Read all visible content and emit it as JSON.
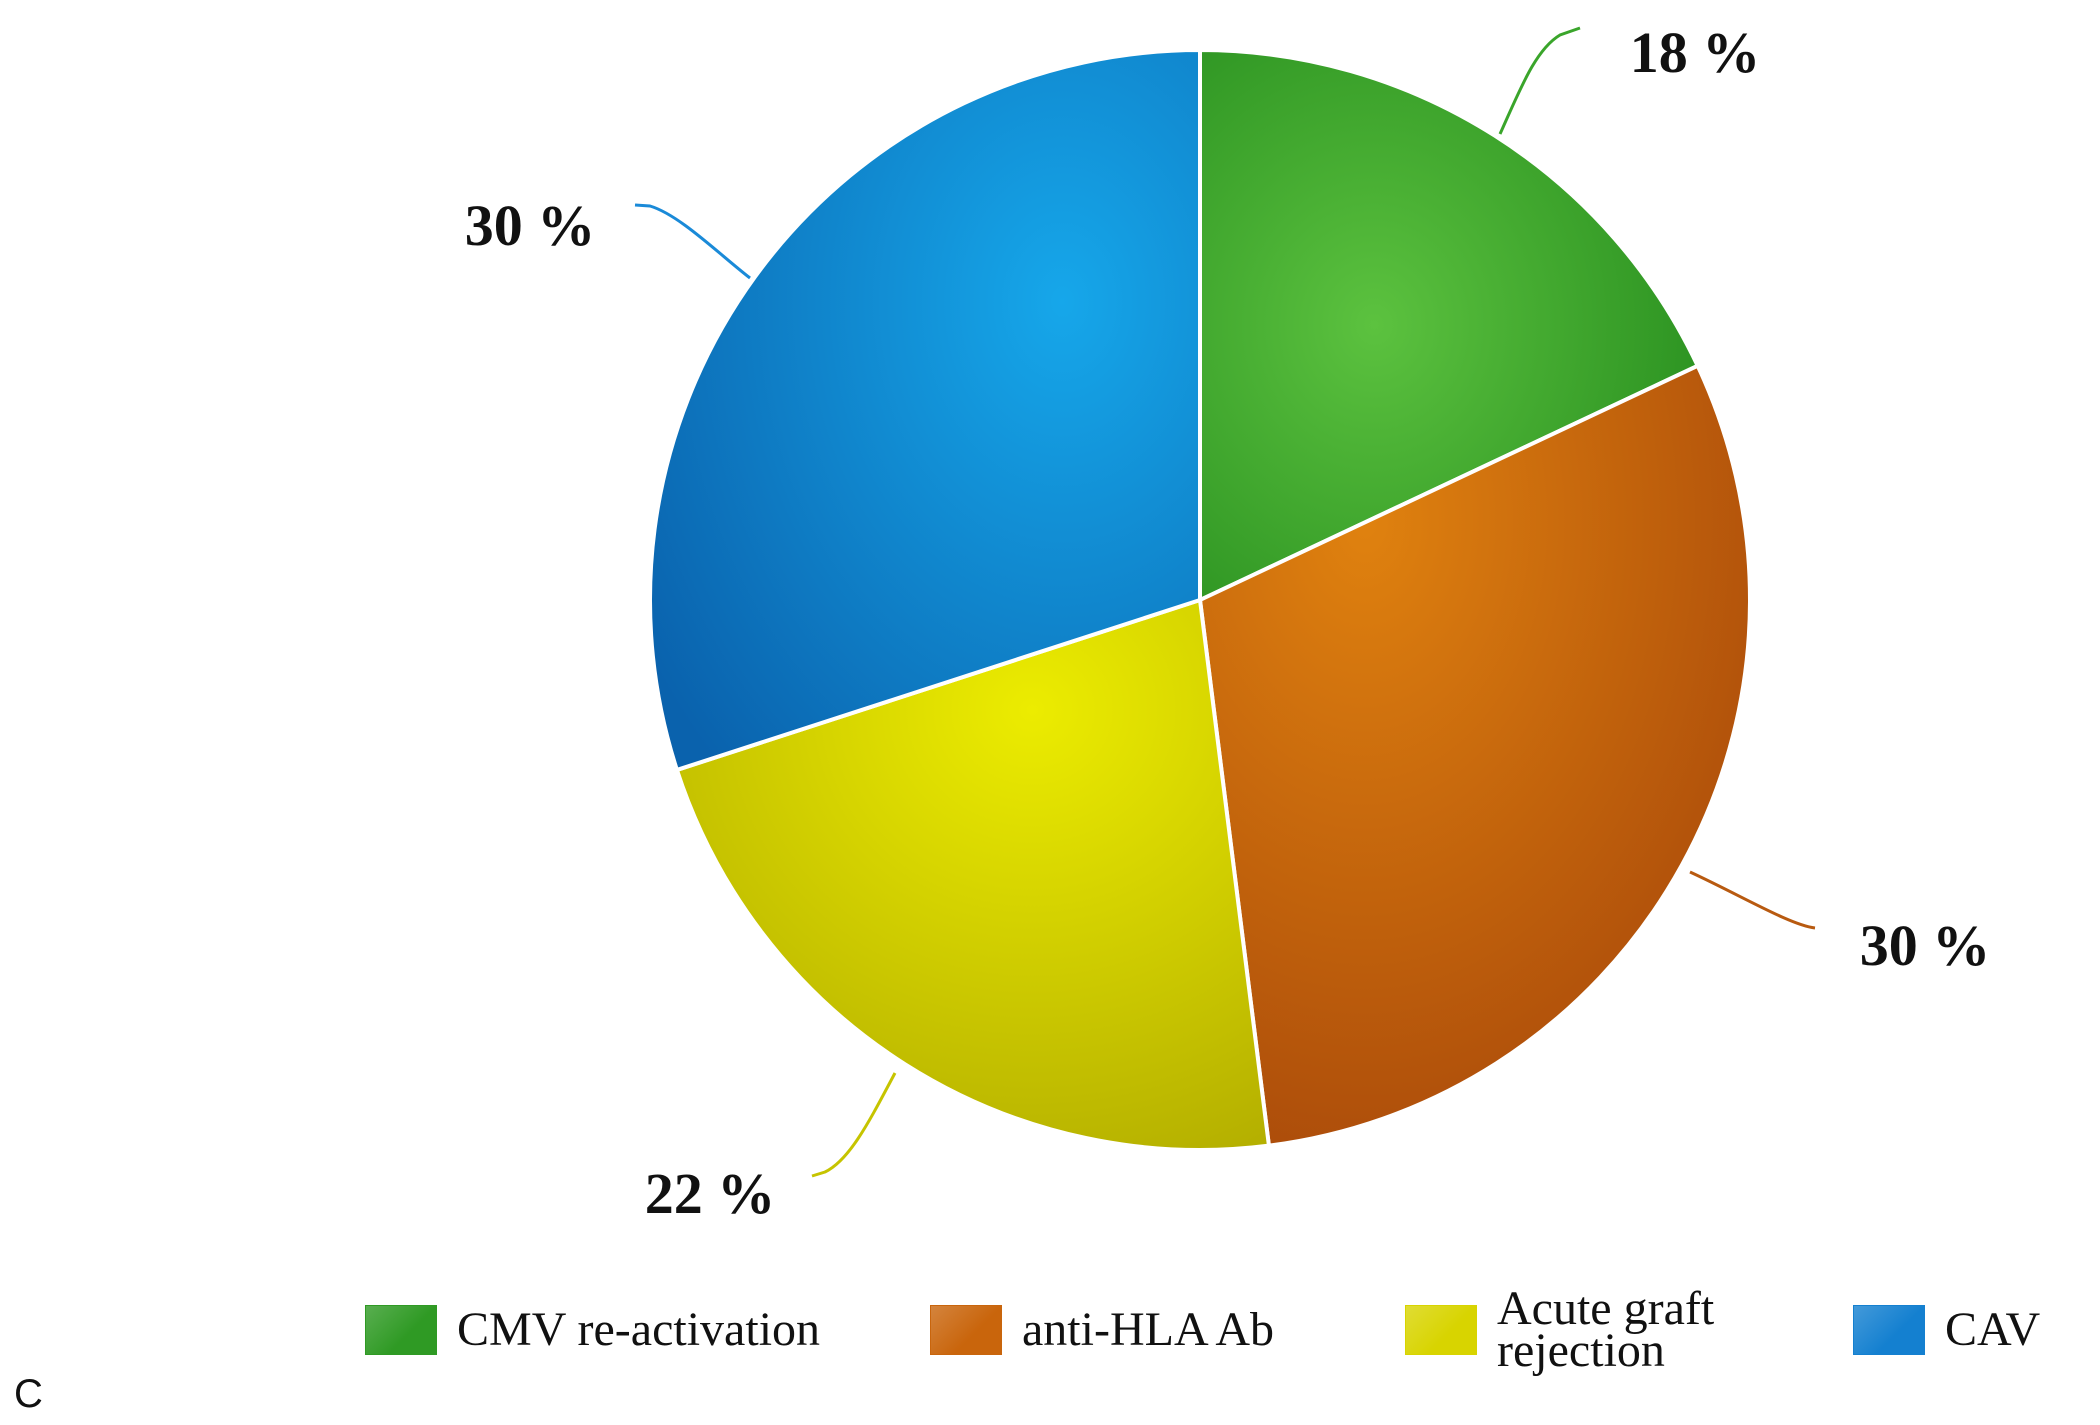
{
  "panel_letter": "C",
  "chart_data": {
    "type": "pie",
    "title": "",
    "slices": [
      {
        "name": "CMV re-activation",
        "value": 18,
        "label": "18 %",
        "color": "#3aa52b"
      },
      {
        "name": "anti-HLA Ab",
        "value": 30,
        "label": "30 %",
        "color": "#cd6a0e"
      },
      {
        "name": "Acute graft rejection",
        "value": 22,
        "label": "22 %",
        "color": "#d6d400"
      },
      {
        "name": "CAV",
        "value": 30,
        "label": "30 %",
        "color": "#1284d4"
      }
    ],
    "start": "12 o'clock",
    "direction": "clockwise",
    "legend_position": "bottom"
  },
  "legend": {
    "items": [
      {
        "label": "CMV re-activation",
        "color": "#2f9a24"
      },
      {
        "label": "anti-HLA Ab",
        "color": "#c9650c"
      },
      {
        "label": "Acute graft\nrejection",
        "color": "#d8d400"
      },
      {
        "label": "CAV",
        "color": "#1480d0"
      }
    ]
  }
}
